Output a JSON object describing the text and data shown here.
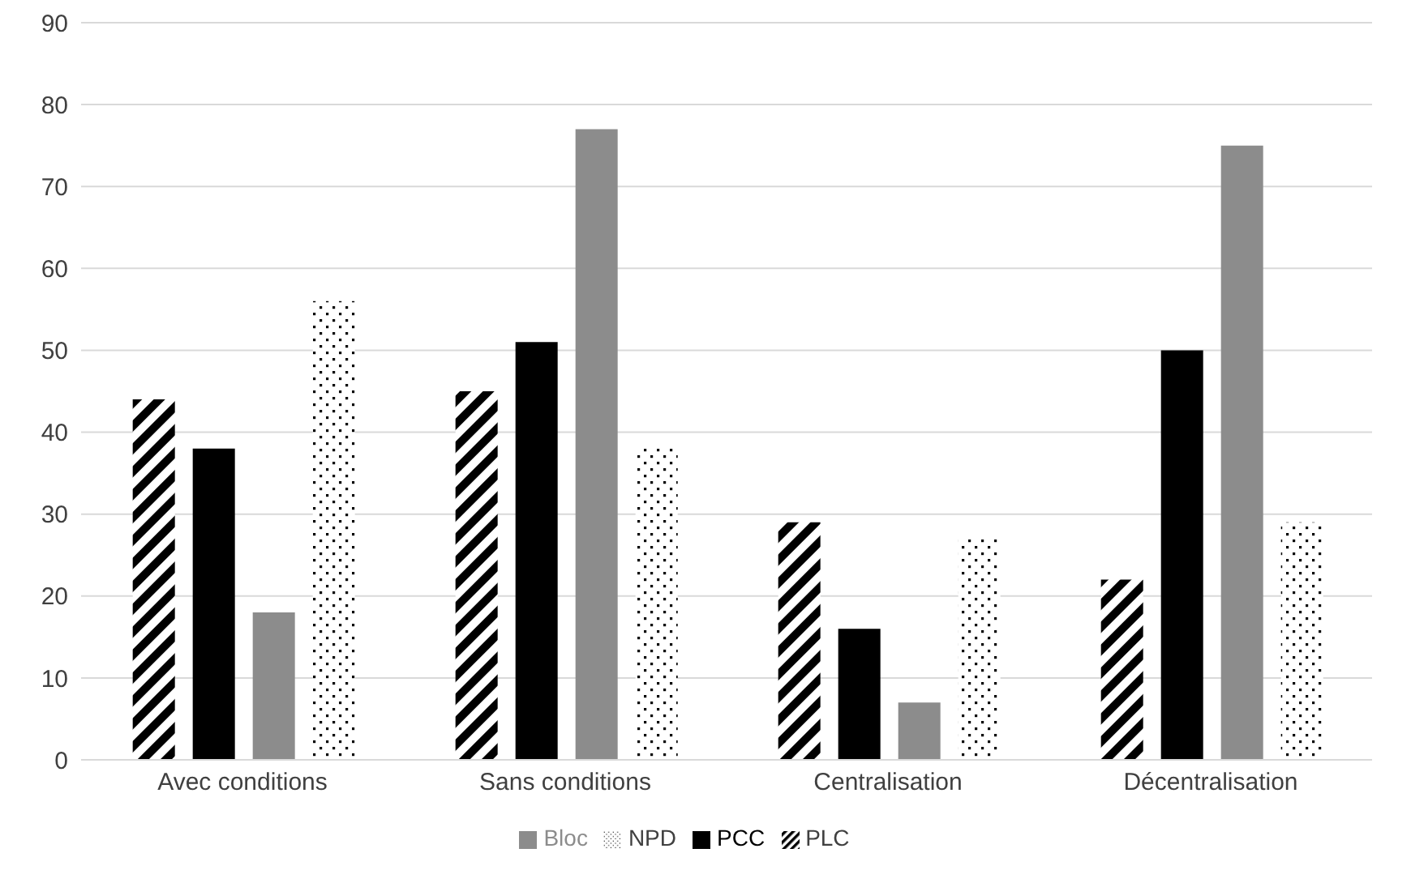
{
  "chart_data": {
    "type": "bar",
    "categories": [
      "Avec conditions",
      "Sans conditions",
      "Centralisation",
      "Décentralisation"
    ],
    "series": [
      {
        "name": "PLC",
        "color": "#000000",
        "values": [
          44,
          45,
          29,
          22
        ]
      },
      {
        "name": "PCC",
        "color": "#000000",
        "values": [
          38,
          51,
          16,
          50
        ]
      },
      {
        "name": "Bloc",
        "color": "#8c8c8c",
        "values": [
          18,
          77,
          7,
          75
        ]
      },
      {
        "name": "NPD",
        "color": "#000000",
        "values": [
          56,
          38,
          27,
          29
        ]
      }
    ],
    "ylim": [
      0,
      90
    ],
    "yticks": [
      0,
      10,
      20,
      30,
      40,
      50,
      60,
      70,
      80,
      90
    ],
    "grid": "y",
    "legend": "bottom"
  }
}
